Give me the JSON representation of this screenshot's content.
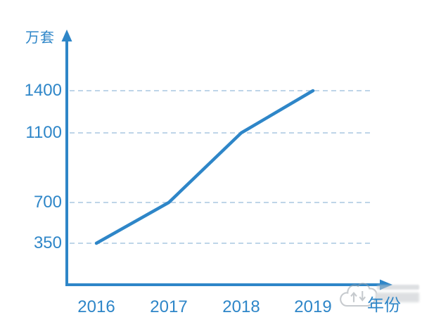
{
  "chart": {
    "y_axis_unit_label": "万套",
    "x_axis_unit_label": "年份",
    "accent_color": "#2E86C8",
    "gridline_color": "#A9C7E0"
  },
  "chart_data": {
    "type": "line",
    "title": "",
    "categories": [
      "2016",
      "2017",
      "2018",
      "2019"
    ],
    "values": [
      350,
      700,
      1100,
      1400
    ],
    "xlabel": "年份",
    "ylabel": "万套",
    "y_ticks": [
      350,
      700,
      1100,
      1400
    ],
    "ylim": [
      0,
      1500
    ],
    "grid": "horizontal-dashed",
    "legend_position": "none",
    "line_color": "#2E86C8"
  },
  "watermark": {
    "icon": "cloud-up-down-arrows-icon"
  }
}
